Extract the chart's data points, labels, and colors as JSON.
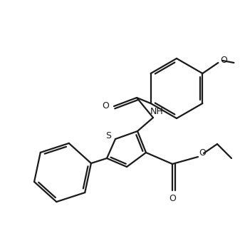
{
  "background_color": "#ffffff",
  "line_color": "#1a1a1a",
  "line_width": 1.6,
  "figsize": [
    3.37,
    3.17
  ],
  "dpi": 100,
  "xlim": [
    0,
    337
  ],
  "ylim": [
    0,
    317
  ]
}
